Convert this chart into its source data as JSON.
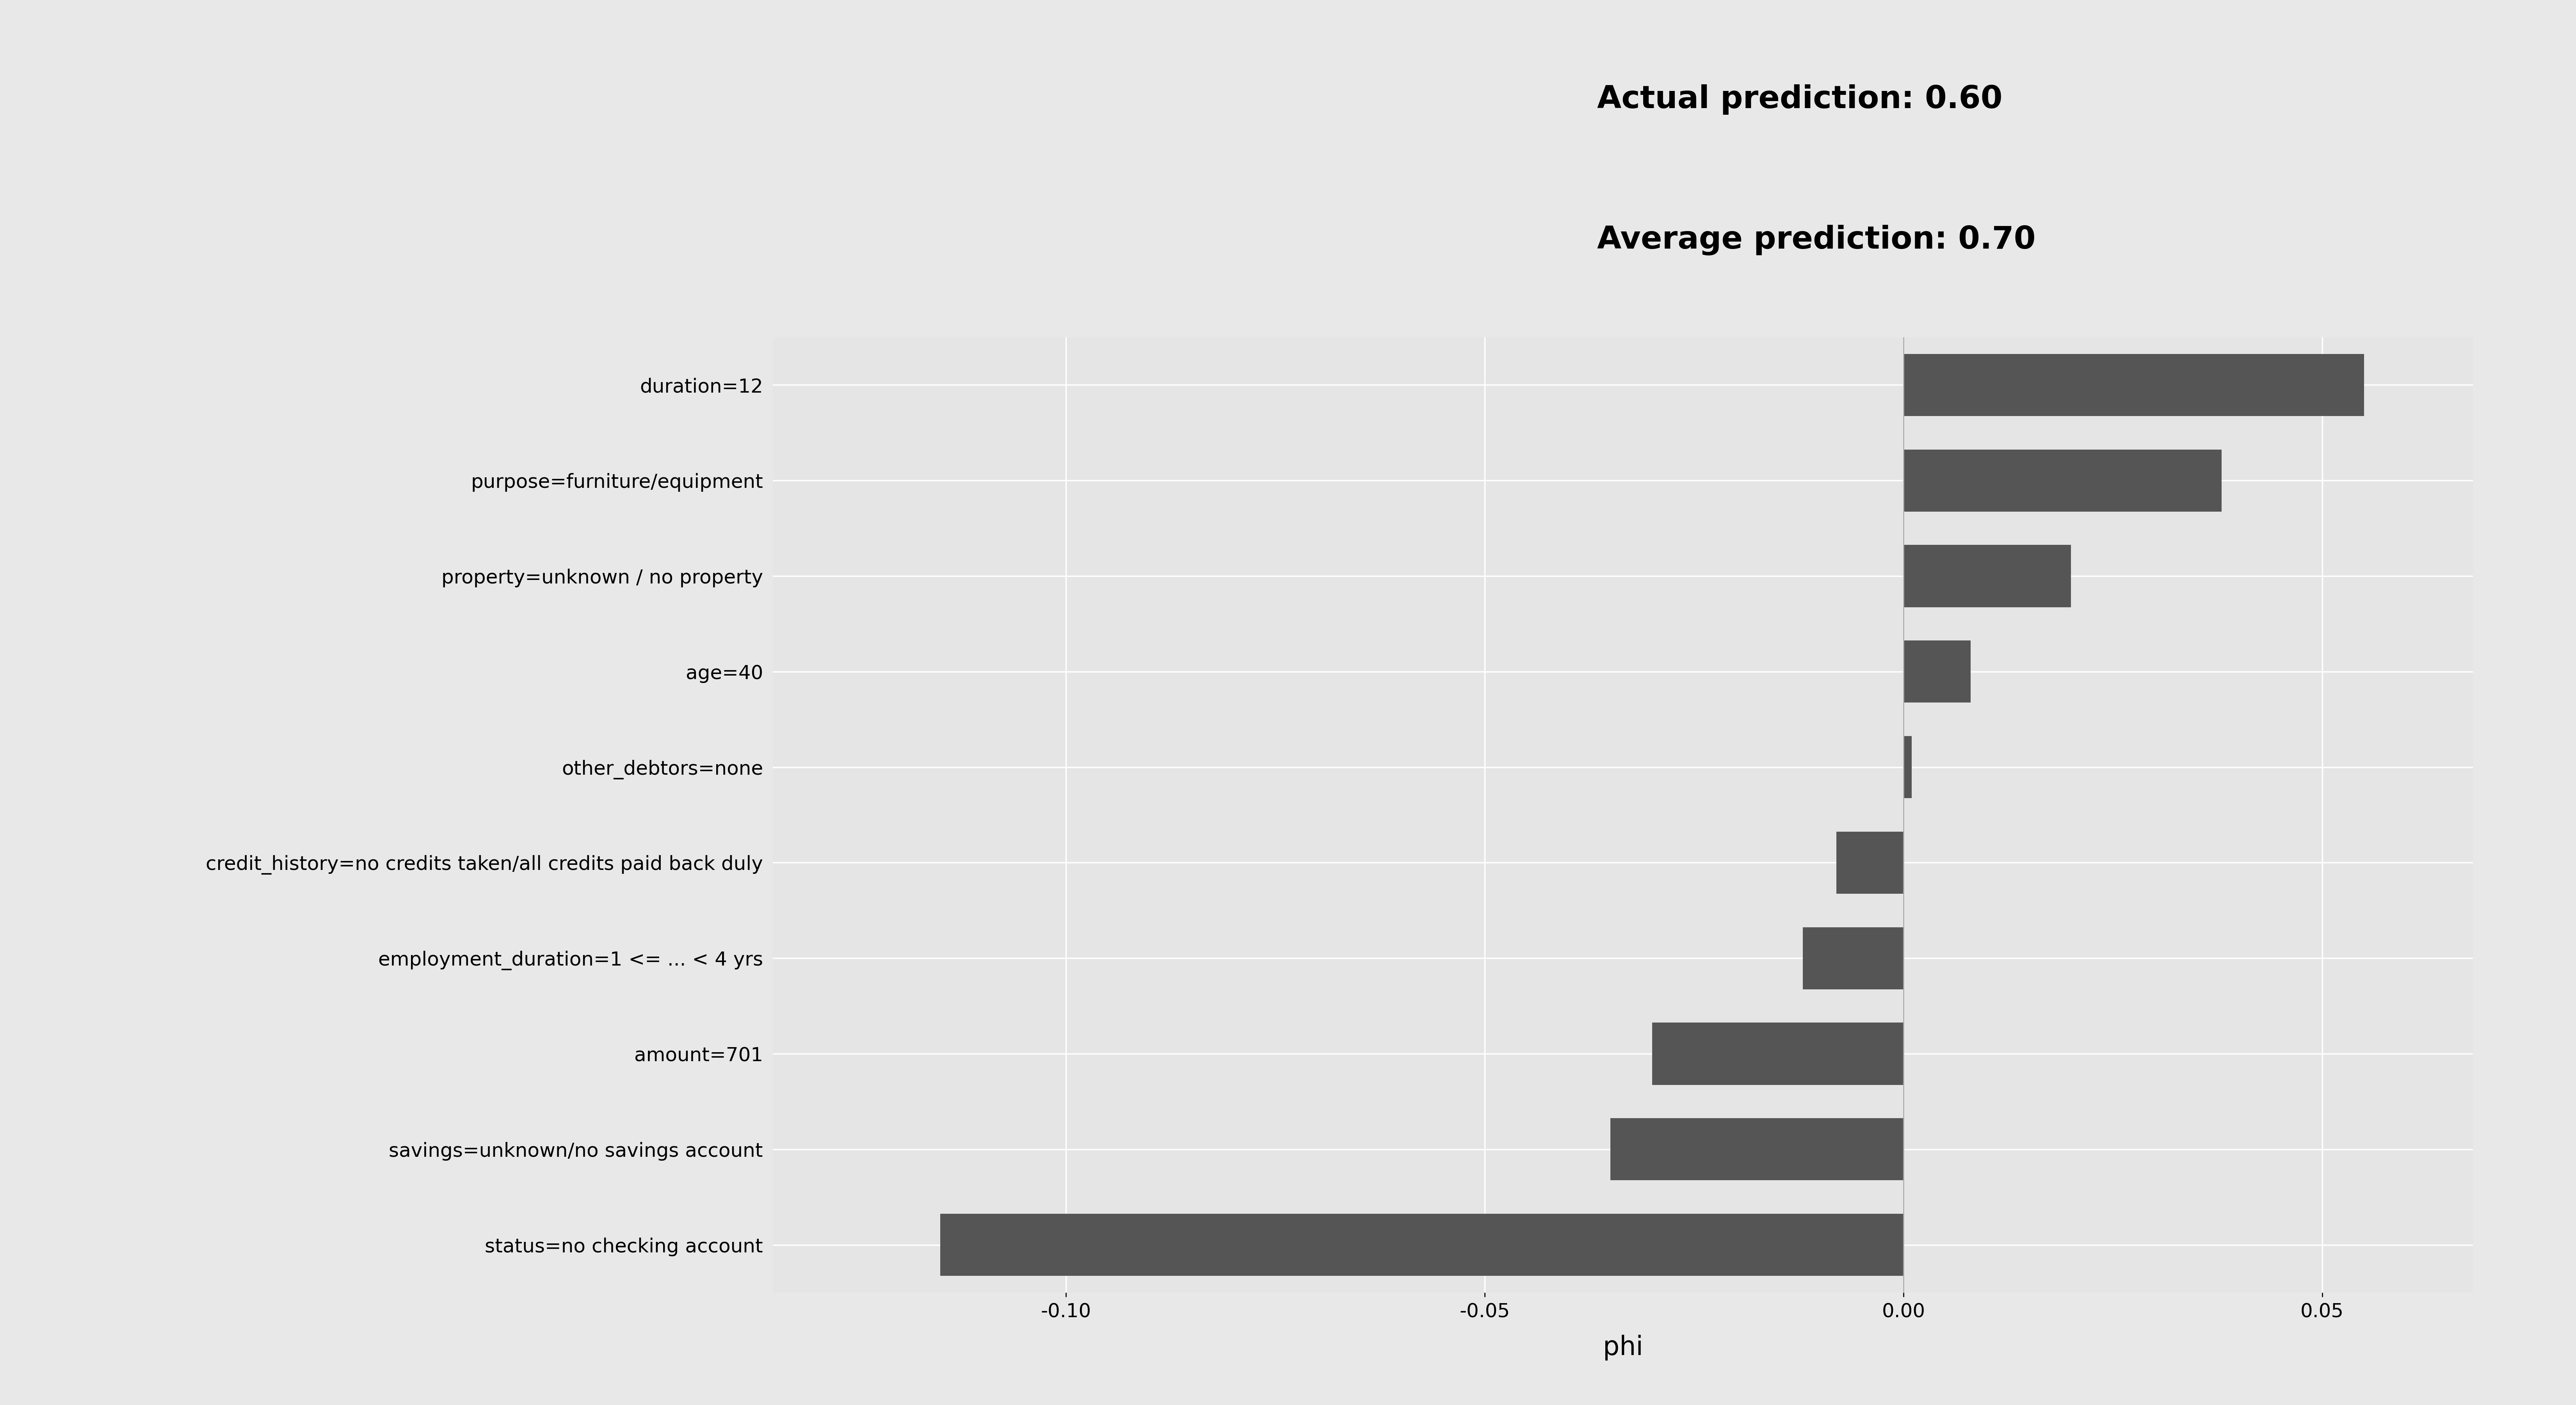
{
  "features": [
    "duration=12",
    "purpose=furniture/equipment",
    "property=unknown / no property",
    "age=40",
    "other_debtors=none",
    "credit_history=no credits taken/all credits paid back duly",
    "employment_duration=1 <= ... < 4 yrs",
    "amount=701",
    "savings=unknown/no savings account",
    "status=no checking account"
  ],
  "phi_values": [
    0.055,
    0.038,
    0.02,
    0.008,
    0.001,
    -0.008,
    -0.012,
    -0.03,
    -0.035,
    -0.115
  ],
  "bar_color": "#555555",
  "background_color": "#e8e8e8",
  "plot_bg_color": "#e5e5e5",
  "title_line1": "Actual prediction: 0.60",
  "title_line2": "Average prediction: 0.70",
  "xlabel": "phi",
  "xlim": [
    -0.135,
    0.068
  ],
  "xticks": [
    -0.1,
    -0.05,
    0.0,
    0.05
  ],
  "xtick_labels": [
    "-0.10",
    "-0.05",
    "0.00",
    "0.05"
  ],
  "title_fontsize": 58,
  "label_fontsize": 36,
  "tick_fontsize": 36,
  "xlabel_fontsize": 48,
  "vline_color": "#aaaaaa",
  "grid_color": "#ffffff"
}
